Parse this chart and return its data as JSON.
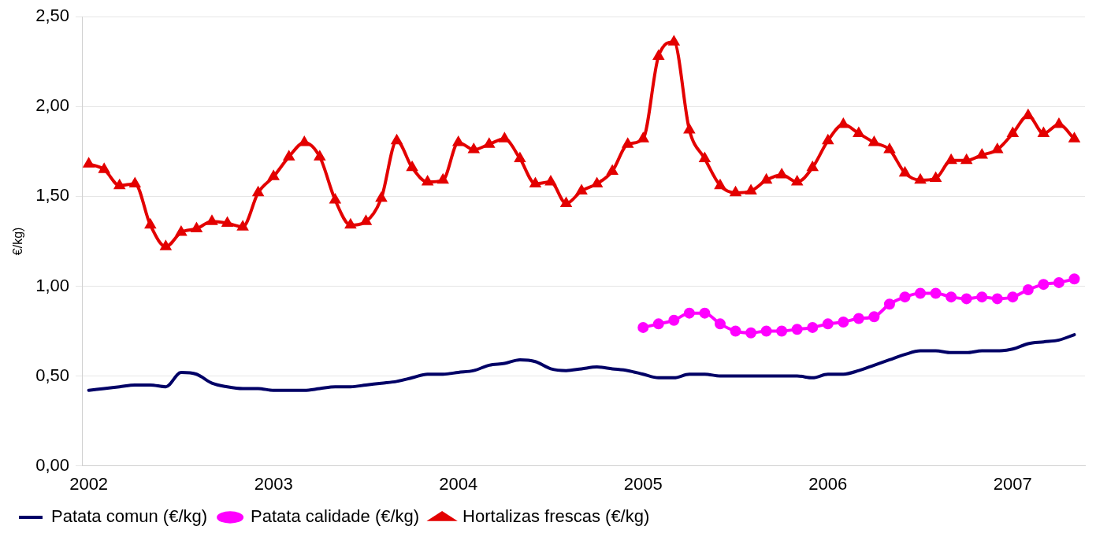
{
  "chart_data": {
    "type": "line",
    "ylabel": "€/kg)",
    "x": [
      "2002-01",
      "2002-02",
      "2002-03",
      "2002-04",
      "2002-05",
      "2002-06",
      "2002-07",
      "2002-08",
      "2002-09",
      "2002-10",
      "2002-11",
      "2002-12",
      "2003-01",
      "2003-02",
      "2003-03",
      "2003-04",
      "2003-05",
      "2003-06",
      "2003-07",
      "2003-08",
      "2003-09",
      "2003-10",
      "2003-11",
      "2003-12",
      "2004-01",
      "2004-02",
      "2004-03",
      "2004-04",
      "2004-05",
      "2004-06",
      "2004-07",
      "2004-08",
      "2004-09",
      "2004-10",
      "2004-11",
      "2004-12",
      "2005-01",
      "2005-02",
      "2005-03",
      "2005-04",
      "2005-05",
      "2005-06",
      "2005-07",
      "2005-08",
      "2005-09",
      "2005-10",
      "2005-11",
      "2005-12",
      "2006-01",
      "2006-02",
      "2006-03",
      "2006-04",
      "2006-05",
      "2006-06",
      "2006-07",
      "2006-08",
      "2006-09",
      "2006-10",
      "2006-11",
      "2006-12",
      "2007-01",
      "2007-02",
      "2007-03",
      "2007-04",
      "2007-05"
    ],
    "series": [
      {
        "name": "Patata comun (€/kg)",
        "color": "#000066",
        "marker": "none",
        "values": [
          0.42,
          0.43,
          0.44,
          0.45,
          0.45,
          0.44,
          0.52,
          0.51,
          0.46,
          0.44,
          0.43,
          0.43,
          0.42,
          0.42,
          0.42,
          0.43,
          0.44,
          0.44,
          0.45,
          0.46,
          0.47,
          0.49,
          0.51,
          0.51,
          0.52,
          0.53,
          0.56,
          0.57,
          0.59,
          0.58,
          0.54,
          0.53,
          0.54,
          0.55,
          0.54,
          0.53,
          0.51,
          0.49,
          0.49,
          0.51,
          0.51,
          0.5,
          0.5,
          0.5,
          0.5,
          0.5,
          0.5,
          0.49,
          0.51,
          0.51,
          0.53,
          0.56,
          0.59,
          0.62,
          0.64,
          0.64,
          0.63,
          0.63,
          0.64,
          0.64,
          0.65,
          0.68,
          0.69,
          0.7,
          0.73
        ]
      },
      {
        "name": "Patata calidade (€/kg)",
        "color": "#ff00ff",
        "marker": "circle",
        "values": [
          null,
          null,
          null,
          null,
          null,
          null,
          null,
          null,
          null,
          null,
          null,
          null,
          null,
          null,
          null,
          null,
          null,
          null,
          null,
          null,
          null,
          null,
          null,
          null,
          null,
          null,
          null,
          null,
          null,
          null,
          null,
          null,
          null,
          null,
          null,
          null,
          0.77,
          0.79,
          0.81,
          0.85,
          0.85,
          0.79,
          0.75,
          0.74,
          0.75,
          0.75,
          0.76,
          0.77,
          0.79,
          0.8,
          0.82,
          0.83,
          0.9,
          0.94,
          0.96,
          0.96,
          0.94,
          0.93,
          0.94,
          0.93,
          0.94,
          0.98,
          1.01,
          1.02,
          1.04
        ]
      },
      {
        "name": "Hortalizas frescas (€/kg)",
        "color": "#e30000",
        "marker": "triangle",
        "values": [
          1.68,
          1.65,
          1.56,
          1.57,
          1.34,
          1.22,
          1.3,
          1.32,
          1.36,
          1.35,
          1.33,
          1.52,
          1.61,
          1.72,
          1.8,
          1.72,
          1.48,
          1.34,
          1.36,
          1.49,
          1.81,
          1.66,
          1.58,
          1.59,
          1.8,
          1.76,
          1.79,
          1.82,
          1.71,
          1.57,
          1.58,
          1.46,
          1.53,
          1.57,
          1.64,
          1.79,
          1.82,
          2.28,
          2.36,
          1.87,
          1.71,
          1.56,
          1.52,
          1.53,
          1.59,
          1.62,
          1.58,
          1.66,
          1.81,
          1.9,
          1.85,
          1.8,
          1.76,
          1.63,
          1.59,
          1.6,
          1.7,
          1.7,
          1.73,
          1.76,
          1.85,
          1.95,
          1.85,
          1.9,
          1.82
        ]
      }
    ],
    "xlim": [
      "2001-12-18",
      "2007-05-22"
    ],
    "xticks": [
      "2002",
      "2003",
      "2004",
      "2005",
      "2006",
      "2007"
    ],
    "ylim": [
      0,
      2.5
    ],
    "yticks": [
      {
        "value": 0,
        "label": "0,00"
      },
      {
        "value": 0.5,
        "label": "0,50"
      },
      {
        "value": 1,
        "label": "1,00"
      },
      {
        "value": 1.5,
        "label": "1,50"
      },
      {
        "value": 2,
        "label": "2,00"
      },
      {
        "value": 2.5,
        "label": "2,50"
      }
    ],
    "grid": "y",
    "legend": "bottom",
    "line_style": "solid"
  }
}
